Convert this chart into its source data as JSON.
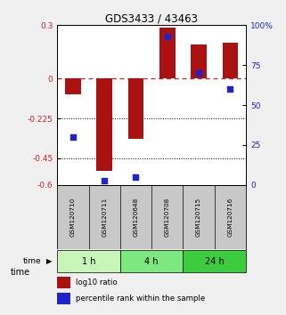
{
  "title": "GDS3433 / 43463",
  "samples": [
    "GSM120710",
    "GSM120711",
    "GSM120648",
    "GSM120708",
    "GSM120715",
    "GSM120716"
  ],
  "log10_ratio": [
    -0.09,
    -0.52,
    -0.34,
    0.285,
    0.19,
    0.2
  ],
  "percentile_rank": [
    30,
    3,
    5,
    93,
    70,
    60
  ],
  "bar_color": "#aa1111",
  "dot_color": "#2222cc",
  "ylim_left": [
    -0.6,
    0.3
  ],
  "ylim_right": [
    0,
    100
  ],
  "yticks_left": [
    0.3,
    0,
    -0.225,
    -0.45,
    -0.6
  ],
  "yticks_left_labels": [
    "0.3",
    "0",
    "-0.225",
    "-0.45",
    "-0.6"
  ],
  "yticks_right": [
    100,
    75,
    50,
    25,
    0
  ],
  "yticks_right_labels": [
    "100%",
    "75",
    "50",
    "25",
    "0"
  ],
  "hline_dotted": [
    -0.225,
    -0.45
  ],
  "time_groups": [
    {
      "label": "1 h",
      "start": 0,
      "end": 2,
      "color": "#c8f5b8"
    },
    {
      "label": "4 h",
      "start": 2,
      "end": 4,
      "color": "#7de87d"
    },
    {
      "label": "24 h",
      "start": 4,
      "end": 6,
      "color": "#3dcc3d"
    }
  ],
  "bg_color": "#f0f0f0",
  "sample_row_color": "#c8c8c8",
  "plot_bg": "#ffffff"
}
